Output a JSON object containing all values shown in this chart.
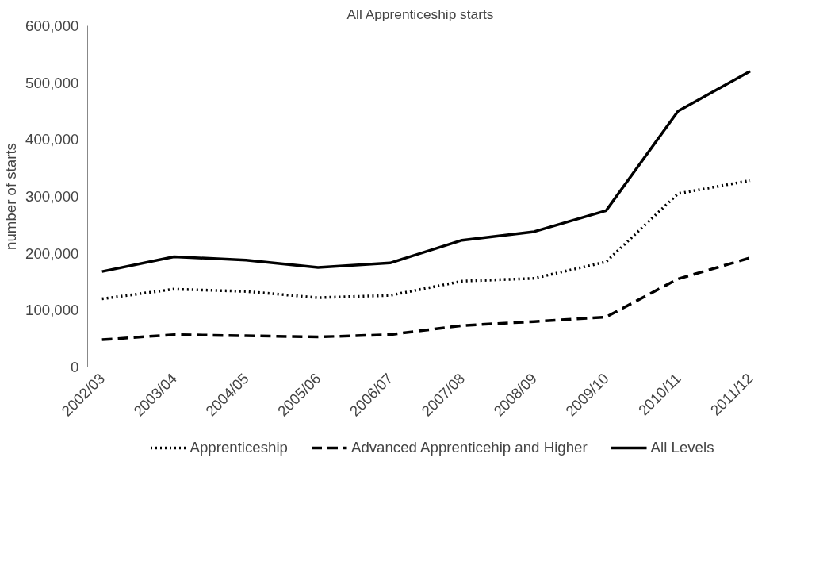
{
  "chart_data": {
    "type": "line",
    "title": "All Apprenticeship starts",
    "ylabel": "number of starts",
    "categories": [
      "2002/03",
      "2003/04",
      "2004/05",
      "2005/06",
      "2006/07",
      "2007/08",
      "2008/09",
      "2009/10",
      "2010/11",
      "2011/12"
    ],
    "series": [
      {
        "name": "Apprenticeship",
        "color": "#000000",
        "line_style": "dotted",
        "values": [
          120000,
          137000,
          133000,
          122000,
          126000,
          151000,
          156000,
          185000,
          305000,
          328000
        ]
      },
      {
        "name": "Advanced Apprenticehip and Higher",
        "color": "#000000",
        "line_style": "dashed",
        "values": [
          48000,
          57000,
          55000,
          53000,
          57000,
          73000,
          80000,
          88000,
          155000,
          192000
        ]
      },
      {
        "name": "All Levels",
        "color": "#000000",
        "line_style": "solid",
        "values": [
          168000,
          194000,
          188000,
          175000,
          183000,
          223000,
          238000,
          275000,
          450000,
          520000
        ]
      }
    ],
    "ylim": [
      0,
      600000
    ],
    "yticks": [
      {
        "value": 0,
        "label": "0"
      },
      {
        "value": 100000,
        "label": "100,000"
      },
      {
        "value": 200000,
        "label": "200,000"
      },
      {
        "value": 300000,
        "label": "300,000"
      },
      {
        "value": 400000,
        "label": "400,000"
      },
      {
        "value": 500000,
        "label": "500,000"
      },
      {
        "value": 600000,
        "label": "600,000"
      }
    ],
    "grid": false,
    "legend": "bottom",
    "marker": "none"
  }
}
